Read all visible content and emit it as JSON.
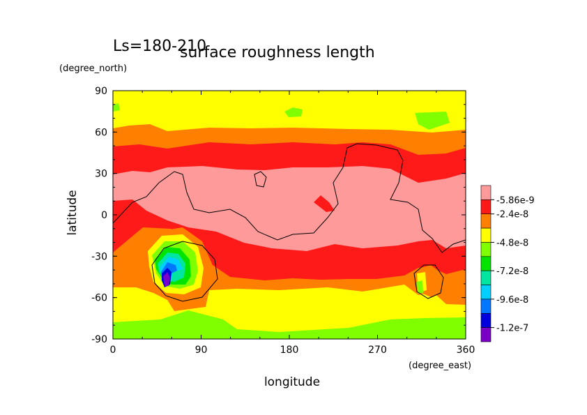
{
  "chart_data": {
    "type": "heatmap",
    "title": "surface roughness length",
    "subtitle": "Ls=180-210",
    "xlabel": "longitude",
    "ylabel": "latitude",
    "x_units": "(degree_east)",
    "y_units": "(degree_north)",
    "xlim": [
      0,
      360
    ],
    "ylim": [
      -90,
      90
    ],
    "x_ticks": [
      0,
      90,
      180,
      270,
      360
    ],
    "y_ticks": [
      90,
      60,
      30,
      0,
      -30,
      -60,
      -90
    ],
    "legend": {
      "placement": "right",
      "labels": [
        "-5.86e-9",
        "-2.4e-8",
        "-4.8e-8",
        "-7.2e-8",
        "-9.6e-8",
        "-1.2e-7"
      ],
      "colors": [
        "#ff9a9a",
        "#ff1a1a",
        "#ff7f00",
        "#ffff00",
        "#7fff00",
        "#00e400",
        "#00e5a0",
        "#00d0ff",
        "#0077ff",
        "#0000dd",
        "#7a00c8"
      ]
    },
    "bands": [
      {
        "level": "-5.86e-9",
        "color": "#ff9a9a",
        "lat_range": [
          -30,
          33
        ]
      },
      {
        "level": "-2.4e-8",
        "color": "#ff1a1a",
        "lat_range": [
          -55,
          42
        ]
      },
      {
        "level": "-4.8e-8",
        "color": "#ff7f00",
        "lat_range": [
          -62,
          58
        ]
      },
      {
        "level": "-7.2e-8",
        "color": "#ffff00",
        "lat_range": [
          -80,
          85
        ]
      },
      {
        "level": "-9.6e-8",
        "color": "#7fff00",
        "lat_range": [
          -88,
          -78
        ]
      }
    ],
    "grid": false
  }
}
